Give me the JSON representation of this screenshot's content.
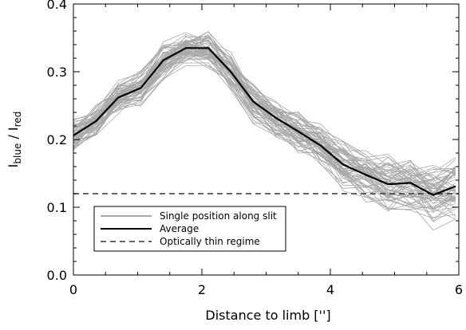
{
  "chart_data": {
    "type": "line",
    "title": "",
    "xlabel": "Distance to limb ['']",
    "ylabel": {
      "prefix": "I",
      "sub1": "blue",
      "sep": " / I",
      "sub2": "red"
    },
    "xlim": [
      0,
      6
    ],
    "ylim": [
      0.0,
      0.4
    ],
    "x_ticks": [
      0,
      2,
      4,
      6
    ],
    "x_tick_labels": [
      "0",
      "2",
      "4",
      "6"
    ],
    "y_ticks": [
      0.0,
      0.1,
      0.2,
      0.3,
      0.4
    ],
    "y_tick_labels": [
      "0.0",
      "0.1",
      "0.2",
      "0.3",
      "0.4"
    ],
    "x": [
      0,
      0.35,
      0.7,
      1.05,
      1.4,
      1.75,
      2.1,
      2.45,
      2.8,
      3.15,
      3.5,
      3.85,
      4.2,
      4.55,
      4.9,
      5.25,
      5.6,
      5.95
    ],
    "series": [
      {
        "name": "Average",
        "values": [
          0.206,
          0.227,
          0.262,
          0.276,
          0.317,
          0.335,
          0.335,
          0.3,
          0.256,
          0.232,
          0.212,
          0.191,
          0.163,
          0.148,
          0.134,
          0.136,
          0.118,
          0.131
        ],
        "style": "solid",
        "color": "#000000"
      }
    ],
    "bundle": {
      "name": "Single position along slit",
      "count": 60,
      "color": "#a8a8a8",
      "spread": [
        0.03,
        0.03,
        0.03,
        0.032,
        0.034,
        0.034,
        0.034,
        0.035,
        0.036,
        0.038,
        0.04,
        0.042,
        0.045,
        0.048,
        0.052,
        0.055,
        0.058,
        0.06
      ]
    },
    "reference_line": {
      "name": "Optically thin regime",
      "y": 0.12,
      "style": "dashed",
      "color": "#333333"
    },
    "legend": {
      "placement": "bottom-left",
      "entries": [
        {
          "label": "Single position along slit",
          "style": "gray-solid"
        },
        {
          "label": "Average",
          "style": "black-solid"
        },
        {
          "label": "Optically thin regime",
          "style": "dashed"
        }
      ]
    },
    "grid": false
  }
}
